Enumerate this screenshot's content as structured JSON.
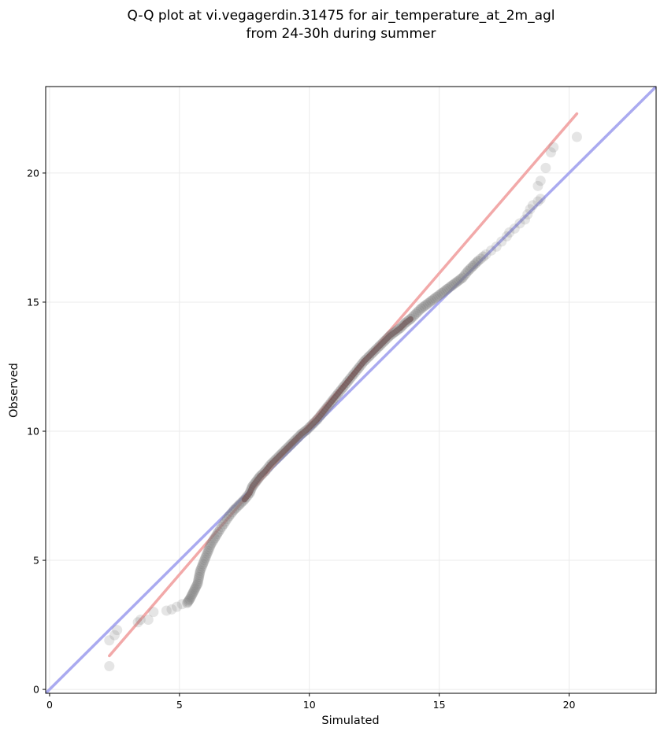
{
  "chart_data": {
    "type": "scatter",
    "title_lines": [
      "Q-Q plot at vi.vegagerdin.31475 for air_temperature_at_2m_agl",
      "from 24-30h during summer"
    ],
    "xlabel": "Simulated",
    "ylabel": "Observed",
    "xlim": [
      -0.15,
      23.35
    ],
    "ylim": [
      -0.15,
      23.35
    ],
    "xticks": [
      0,
      5,
      10,
      15,
      20
    ],
    "yticks": [
      0,
      5,
      10,
      15,
      20
    ],
    "grid": true,
    "identity_line": {
      "color": "#aaaaf0"
    },
    "fit_line": {
      "x": [
        2.3,
        20.3
      ],
      "y": [
        1.3,
        22.3
      ],
      "color": "#f2a9a9"
    },
    "dense_core_color": "#6a1212",
    "marker_color": "#7f7f7f",
    "points": [
      [
        2.3,
        0.9
      ],
      [
        2.3,
        1.9
      ],
      [
        2.5,
        2.1
      ],
      [
        2.6,
        2.3
      ],
      [
        3.4,
        2.6
      ],
      [
        3.5,
        2.7
      ],
      [
        3.8,
        2.7
      ],
      [
        4.0,
        3.0
      ],
      [
        4.5,
        3.05
      ],
      [
        4.7,
        3.1
      ],
      [
        4.9,
        3.2
      ],
      [
        5.1,
        3.3
      ],
      [
        5.3,
        3.35
      ],
      [
        5.4,
        3.5
      ],
      [
        5.5,
        3.7
      ],
      [
        5.6,
        3.9
      ],
      [
        5.7,
        4.1
      ],
      [
        5.75,
        4.35
      ],
      [
        5.8,
        4.6
      ],
      [
        5.9,
        4.85
      ],
      [
        6.0,
        5.1
      ],
      [
        6.1,
        5.35
      ],
      [
        6.2,
        5.6
      ],
      [
        6.35,
        5.85
      ],
      [
        6.5,
        6.1
      ],
      [
        6.7,
        6.4
      ],
      [
        6.9,
        6.7
      ],
      [
        7.1,
        6.95
      ],
      [
        7.3,
        7.15
      ],
      [
        7.5,
        7.35
      ],
      [
        7.7,
        7.6
      ],
      [
        7.8,
        7.85
      ],
      [
        7.95,
        8.05
      ],
      [
        8.1,
        8.25
      ],
      [
        8.3,
        8.45
      ],
      [
        8.5,
        8.7
      ],
      [
        8.7,
        8.9
      ],
      [
        8.9,
        9.1
      ],
      [
        9.1,
        9.3
      ],
      [
        9.3,
        9.5
      ],
      [
        9.5,
        9.7
      ],
      [
        9.7,
        9.9
      ],
      [
        9.9,
        10.05
      ],
      [
        10.1,
        10.25
      ],
      [
        10.3,
        10.45
      ],
      [
        10.5,
        10.7
      ],
      [
        10.7,
        10.95
      ],
      [
        10.9,
        11.2
      ],
      [
        11.1,
        11.45
      ],
      [
        11.3,
        11.7
      ],
      [
        11.5,
        11.95
      ],
      [
        11.7,
        12.2
      ],
      [
        11.9,
        12.45
      ],
      [
        12.1,
        12.7
      ],
      [
        12.3,
        12.9
      ],
      [
        12.5,
        13.1
      ],
      [
        12.7,
        13.3
      ],
      [
        12.9,
        13.5
      ],
      [
        13.1,
        13.7
      ],
      [
        13.3,
        13.85
      ],
      [
        13.5,
        14.0
      ],
      [
        13.7,
        14.2
      ],
      [
        13.9,
        14.35
      ],
      [
        14.1,
        14.55
      ],
      [
        14.3,
        14.75
      ],
      [
        14.5,
        14.9
      ],
      [
        14.7,
        15.05
      ],
      [
        14.9,
        15.2
      ],
      [
        15.1,
        15.35
      ],
      [
        15.3,
        15.5
      ],
      [
        15.5,
        15.65
      ],
      [
        15.7,
        15.8
      ],
      [
        15.9,
        15.95
      ],
      [
        16.1,
        16.2
      ],
      [
        16.3,
        16.4
      ],
      [
        16.5,
        16.6
      ],
      [
        16.8,
        16.85
      ],
      [
        17.0,
        17.0
      ],
      [
        17.2,
        17.15
      ],
      [
        17.4,
        17.35
      ],
      [
        17.6,
        17.55
      ],
      [
        17.7,
        17.7
      ],
      [
        17.9,
        17.85
      ],
      [
        18.1,
        18.05
      ],
      [
        18.3,
        18.2
      ],
      [
        18.4,
        18.4
      ],
      [
        18.5,
        18.6
      ],
      [
        18.6,
        18.75
      ],
      [
        18.8,
        18.9
      ],
      [
        18.9,
        19.0
      ],
      [
        18.8,
        19.5
      ],
      [
        18.9,
        19.7
      ],
      [
        19.1,
        20.2
      ],
      [
        19.3,
        20.8
      ],
      [
        19.4,
        21.0
      ],
      [
        20.3,
        21.4
      ]
    ]
  }
}
